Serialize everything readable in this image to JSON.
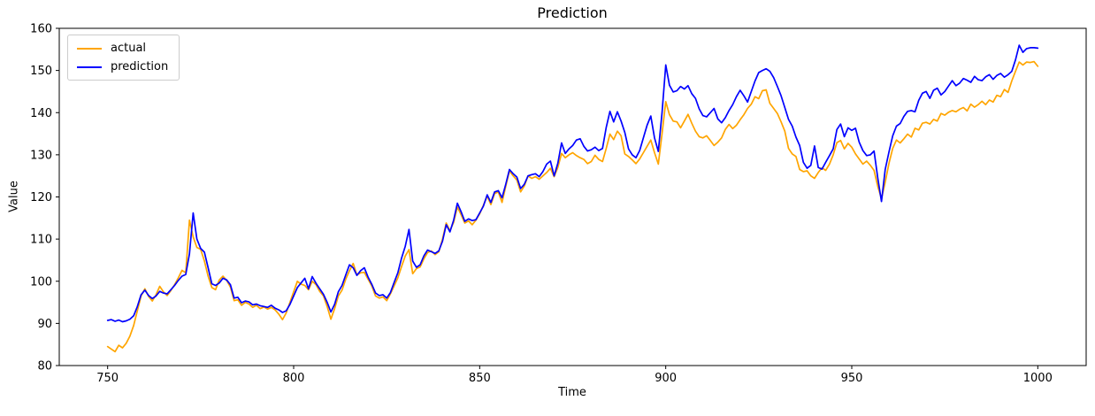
{
  "figure": {
    "title": "Prediction"
  },
  "chart_data": {
    "type": "line",
    "title": "Prediction",
    "xlabel": "Time",
    "ylabel": "Value",
    "xlim": [
      737,
      1013
    ],
    "ylim": [
      80,
      160
    ],
    "x_ticks": [
      750,
      800,
      850,
      900,
      950,
      1000
    ],
    "y_ticks": [
      80,
      90,
      100,
      110,
      120,
      130,
      140,
      150,
      160
    ],
    "grid": false,
    "legend_position": "upper-left",
    "x_start": 750,
    "x_step": 1,
    "series": [
      {
        "name": "actual",
        "color": "#FFA500",
        "values": [
          84.5,
          83.9,
          83.3,
          84.8,
          84.2,
          85.3,
          87.0,
          89.5,
          93.0,
          96.5,
          98.2,
          96.4,
          95.3,
          96.8,
          98.8,
          97.5,
          96.6,
          97.8,
          99.2,
          100.8,
          102.6,
          102.0,
          114.5,
          110.5,
          108.0,
          107.6,
          104.8,
          101.2,
          98.5,
          98.0,
          100.3,
          101.2,
          100.2,
          98.6,
          95.4,
          95.6,
          94.3,
          95.0,
          94.6,
          93.8,
          94.3,
          93.5,
          93.9,
          93.4,
          93.8,
          93.2,
          92.2,
          90.9,
          92.5,
          95.0,
          97.5,
          100.0,
          99.3,
          99.0,
          98.0,
          100.0,
          99.2,
          97.6,
          96.5,
          94.0,
          91.0,
          93.5,
          96.5,
          97.9,
          100.5,
          102.5,
          104.2,
          101.5,
          102.0,
          102.1,
          100.5,
          98.9,
          96.5,
          96.0,
          96.3,
          95.4,
          97.0,
          98.9,
          100.8,
          103.5,
          106.0,
          107.5,
          101.8,
          103.0,
          103.4,
          105.3,
          106.8,
          107.2,
          106.3,
          107.0,
          110.0,
          113.8,
          112.0,
          114.0,
          117.6,
          115.8,
          113.8,
          114.3,
          113.4,
          114.5,
          116.0,
          118.0,
          120.2,
          118.2,
          120.8,
          121.2,
          118.7,
          122.5,
          126.2,
          125.0,
          124.0,
          121.2,
          122.6,
          125.0,
          124.4,
          124.8,
          124.2,
          125.0,
          125.8,
          126.8,
          124.8,
          127.0,
          130.3,
          129.3,
          130.0,
          130.5,
          129.8,
          129.3,
          128.9,
          127.9,
          128.4,
          129.9,
          128.9,
          128.4,
          131.5,
          134.9,
          133.6,
          135.6,
          134.5,
          130.2,
          129.6,
          128.8,
          127.9,
          129.0,
          130.5,
          132.0,
          133.5,
          130.5,
          127.8,
          135.0,
          142.6,
          139.5,
          138.0,
          137.8,
          136.4,
          138.0,
          139.6,
          137.5,
          135.6,
          134.3,
          134.0,
          134.5,
          133.4,
          132.2,
          133.0,
          134.0,
          136.0,
          137.2,
          136.2,
          137.0,
          138.3,
          139.5,
          141.0,
          142.0,
          143.8,
          143.3,
          145.2,
          145.4,
          142.2,
          141.0,
          139.8,
          137.8,
          135.6,
          131.5,
          130.2,
          129.6,
          126.5,
          126.0,
          126.2,
          125.0,
          124.4,
          125.8,
          126.9,
          126.3,
          127.8,
          130.0,
          132.9,
          133.4,
          131.4,
          132.7,
          131.8,
          130.2,
          129.0,
          127.8,
          128.5,
          127.5,
          126.3,
          122.5,
          119.6,
          123.5,
          128.0,
          131.5,
          133.5,
          132.8,
          133.8,
          134.9,
          134.2,
          136.3,
          135.9,
          137.5,
          137.7,
          137.3,
          138.4,
          138.0,
          139.8,
          139.4,
          140.1,
          140.5,
          140.2,
          140.8,
          141.2,
          140.4,
          142.0,
          141.3,
          141.9,
          142.7,
          141.9,
          143.0,
          142.5,
          144.1,
          143.8,
          145.5,
          144.8,
          147.5,
          149.8,
          152.0,
          151.3,
          152.0,
          151.9,
          152.1,
          151.0
        ]
      },
      {
        "name": "prediction",
        "color": "#0000FF",
        "values": [
          90.7,
          90.9,
          90.5,
          90.8,
          90.4,
          90.6,
          91.0,
          91.8,
          94.0,
          96.8,
          97.9,
          96.6,
          95.9,
          96.5,
          97.6,
          97.2,
          97.0,
          98.0,
          99.0,
          100.2,
          101.2,
          101.6,
          106.5,
          116.2,
          110.0,
          107.8,
          106.9,
          103.2,
          99.4,
          99.0,
          99.6,
          100.7,
          100.3,
          99.2,
          96.0,
          96.2,
          94.9,
          95.3,
          95.1,
          94.4,
          94.6,
          94.2,
          94.0,
          93.8,
          94.3,
          93.6,
          93.2,
          92.6,
          93.0,
          94.5,
          96.5,
          98.5,
          99.6,
          100.7,
          98.2,
          101.1,
          99.5,
          98.2,
          96.9,
          95.0,
          92.7,
          94.5,
          97.5,
          99.0,
          101.5,
          103.9,
          103.2,
          101.4,
          102.5,
          103.2,
          101.0,
          99.3,
          97.2,
          96.6,
          96.8,
          96.0,
          97.3,
          99.7,
          102.0,
          105.5,
          108.3,
          112.3,
          104.8,
          103.3,
          103.9,
          106.0,
          107.4,
          107.0,
          106.6,
          107.2,
          109.5,
          113.4,
          111.7,
          114.5,
          118.5,
          116.5,
          114.2,
          114.8,
          114.4,
          114.6,
          116.2,
          117.8,
          120.5,
          118.7,
          121.2,
          121.5,
          119.8,
          123.0,
          126.5,
          125.5,
          124.7,
          122.0,
          123.0,
          125.0,
          125.3,
          125.5,
          124.8,
          126.0,
          127.8,
          128.5,
          125.0,
          128.0,
          132.8,
          130.3,
          131.4,
          132.2,
          133.5,
          133.8,
          132.0,
          130.9,
          131.2,
          131.8,
          131.0,
          131.5,
          136.5,
          140.3,
          137.8,
          140.2,
          138.0,
          135.3,
          131.4,
          130.0,
          129.3,
          131.0,
          134.0,
          137.0,
          139.2,
          134.0,
          130.8,
          140.0,
          151.3,
          146.5,
          144.9,
          145.2,
          146.2,
          145.6,
          146.4,
          144.5,
          143.4,
          140.9,
          139.3,
          139.0,
          140.0,
          141.0,
          138.5,
          137.6,
          138.8,
          140.5,
          141.9,
          143.8,
          145.3,
          144.0,
          142.5,
          145.0,
          147.5,
          149.5,
          150.0,
          150.4,
          149.8,
          148.3,
          146.2,
          144.0,
          141.2,
          138.4,
          136.8,
          134.2,
          132.2,
          128.2,
          126.8,
          127.5,
          132.1,
          127.0,
          126.6,
          128.2,
          129.8,
          131.4,
          136.0,
          137.3,
          134.3,
          136.4,
          135.8,
          136.3,
          133.0,
          131.0,
          129.8,
          130.0,
          130.9,
          124.5,
          118.9,
          126.5,
          130.7,
          134.5,
          136.8,
          137.4,
          139.1,
          140.3,
          140.5,
          140.2,
          142.9,
          144.6,
          145.0,
          143.4,
          145.3,
          145.8,
          144.2,
          145.0,
          146.3,
          147.6,
          146.4,
          147.0,
          148.1,
          147.7,
          147.2,
          148.6,
          147.8,
          147.6,
          148.5,
          149.0,
          147.9,
          148.8,
          149.3,
          148.4,
          149.0,
          149.8,
          152.5,
          156.0,
          154.3,
          155.2,
          155.4,
          155.4,
          155.3
        ]
      }
    ]
  },
  "legend": {
    "items": [
      {
        "label": "actual",
        "color": "#FFA500"
      },
      {
        "label": "prediction",
        "color": "#0000FF"
      }
    ]
  }
}
